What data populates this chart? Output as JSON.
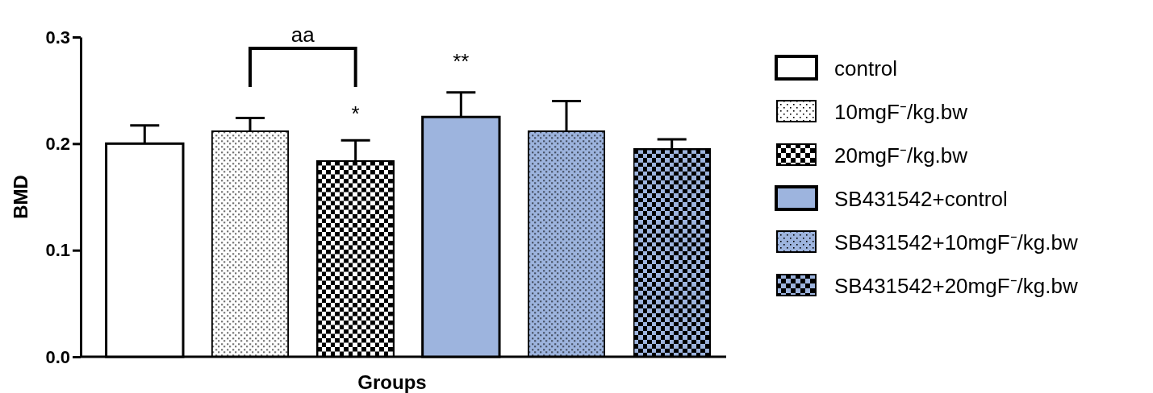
{
  "chart_data": {
    "type": "bar",
    "xlabel": "Groups",
    "ylabel": "BMD",
    "categories": [
      null,
      null,
      null,
      null,
      null,
      null
    ],
    "ylim": [
      0,
      0.3
    ],
    "yticks": [
      {
        "value": 0,
        "label": "0.0"
      },
      0.1,
      0.2,
      0.3
    ],
    "legend": "right",
    "grid": false,
    "series": [
      {
        "name": "control",
        "color": "#ffffff",
        "values": [
          0.2,
          null,
          null,
          null,
          null,
          null
        ],
        "errors": [
          [
            0.2,
            0.217
          ],
          null,
          null,
          null,
          null,
          null
        ]
      },
      {
        "name": "10mgF⁻/kg.bw",
        "color": "#ffffff",
        "values": [
          null,
          0.212,
          null,
          null,
          null,
          null
        ],
        "errors": [
          null,
          [
            0.212,
            0.224
          ],
          null,
          null,
          null,
          null
        ]
      },
      {
        "name": "20mgF⁻/kg.bw",
        "color": "#ffffff",
        "values": [
          null,
          null,
          0.184,
          null,
          null,
          null
        ],
        "errors": [
          null,
          null,
          [
            0.184,
            0.203
          ],
          null,
          null,
          null
        ]
      },
      {
        "name": "SB431542+control",
        "color": "#9db4de",
        "values": [
          null,
          null,
          null,
          0.225,
          null,
          null
        ],
        "errors": [
          null,
          null,
          null,
          [
            0.225,
            0.248
          ],
          null,
          null
        ]
      },
      {
        "name": "SB431542+10mgF⁻/kg.bw",
        "color": "#9db4de",
        "values": [
          null,
          null,
          null,
          null,
          0.212,
          null
        ],
        "errors": [
          null,
          null,
          null,
          null,
          [
            0.212,
            0.24
          ],
          null
        ]
      },
      {
        "name": "SB431542+20mgF⁻/kg.bw",
        "color": "#9db4de",
        "values": [
          null,
          null,
          null,
          null,
          null,
          0.195
        ],
        "errors": [
          null,
          null,
          null,
          null,
          null,
          [
            0.195,
            0.204
          ]
        ]
      }
    ],
    "annotations": [
      "aa",
      "*",
      "**"
    ]
  }
}
